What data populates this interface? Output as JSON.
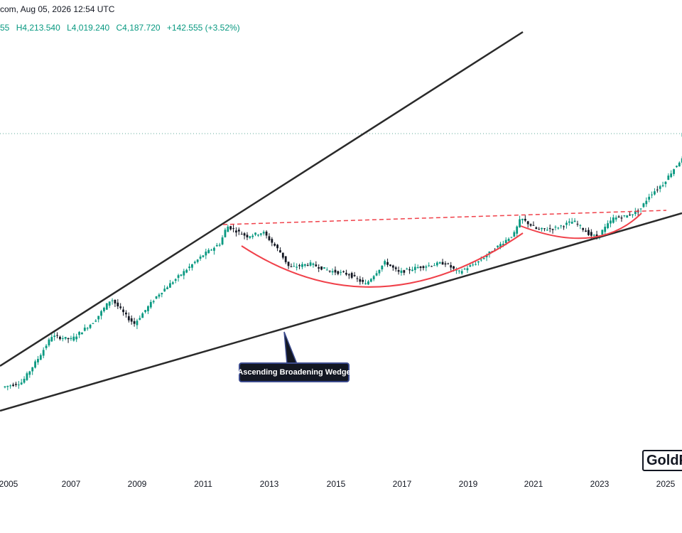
{
  "header": {
    "source_date": "com, Aug 05, 2026 12:54 UTC"
  },
  "ohlc": {
    "open": "55",
    "high": "H4,213.540",
    "low": "L4,019.240",
    "close": "C4,187.720",
    "change": "+142.555 (+3.52%)"
  },
  "annotation": {
    "label": "Ascending Broadening Wedge"
  },
  "watermark": {
    "text": "GoldP"
  },
  "colors": {
    "up": "#089981",
    "down": "#131722",
    "trendline": "#2a2a2a",
    "arc": "#f0414a",
    "resistance": "#f0414a",
    "dotted_level": "#5fa89a"
  },
  "chart_data": {
    "type": "candlestick",
    "title": "",
    "xlabel": "",
    "ylabel": "",
    "x_tick_labels": [
      "2005",
      "2007",
      "2009",
      "2011",
      "2013",
      "2015",
      "2017",
      "2019",
      "2021",
      "2023",
      "2025"
    ],
    "x_range": [
      2004.9,
      2025.5
    ],
    "log_scale": true,
    "grid": false,
    "last_bar": {
      "open": 4045.2,
      "high": 4213.54,
      "low": 4019.24,
      "close": 4187.72
    },
    "price_path": [
      [
        2004.9,
        430
      ],
      [
        2005.5,
        450
      ],
      [
        2006.0,
        560
      ],
      [
        2006.4,
        680
      ],
      [
        2007.0,
        660
      ],
      [
        2007.7,
        780
      ],
      [
        2008.2,
        950
      ],
      [
        2008.7,
        800
      ],
      [
        2008.9,
        760
      ],
      [
        2009.6,
        980
      ],
      [
        2010.5,
        1240
      ],
      [
        2011.0,
        1410
      ],
      [
        2011.5,
        1560
      ],
      [
        2011.7,
        1820
      ],
      [
        2012.3,
        1660
      ],
      [
        2012.8,
        1720
      ],
      [
        2013.3,
        1450
      ],
      [
        2013.6,
        1250
      ],
      [
        2014.2,
        1300
      ],
      [
        2014.8,
        1220
      ],
      [
        2015.4,
        1180
      ],
      [
        2015.9,
        1080
      ],
      [
        2016.5,
        1320
      ],
      [
        2016.9,
        1200
      ],
      [
        2017.5,
        1260
      ],
      [
        2018.3,
        1310
      ],
      [
        2018.7,
        1200
      ],
      [
        2019.3,
        1320
      ],
      [
        2019.8,
        1480
      ],
      [
        2020.4,
        1700
      ],
      [
        2020.6,
        1950
      ],
      [
        2021.1,
        1760
      ],
      [
        2021.6,
        1780
      ],
      [
        2022.2,
        1900
      ],
      [
        2022.7,
        1680
      ],
      [
        2022.9,
        1650
      ],
      [
        2023.4,
        1950
      ],
      [
        2023.8,
        1990
      ],
      [
        2024.2,
        2100
      ],
      [
        2024.5,
        2400
      ],
      [
        2024.9,
        2650
      ],
      [
        2025.2,
        3000
      ],
      [
        2025.45,
        3300
      ]
    ]
  }
}
